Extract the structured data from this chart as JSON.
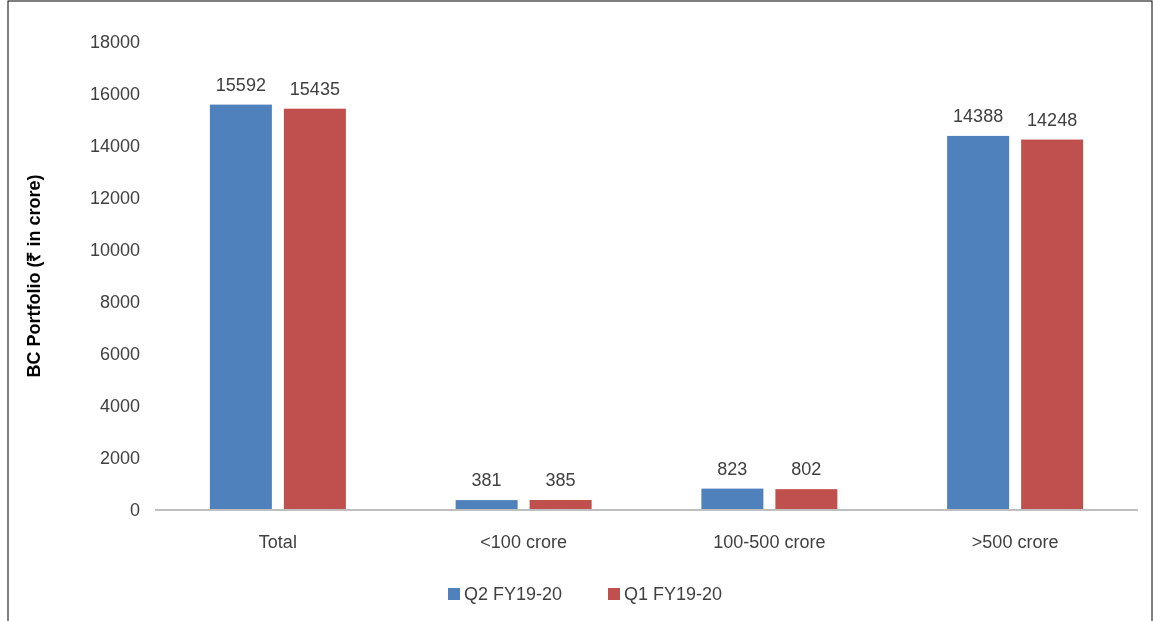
{
  "chart_data": {
    "type": "bar",
    "ylabel": "BC Portfolio (₹ in crore)",
    "categories": [
      "Total",
      "<100 crore",
      "100-500 crore",
      ">500 crore"
    ],
    "series": [
      {
        "name": "Q2 FY19-20",
        "color": "#4f81bd",
        "values": [
          15592,
          381,
          823,
          14388
        ]
      },
      {
        "name": "Q1 FY19-20",
        "color": "#c0504d",
        "values": [
          15435,
          385,
          802,
          14248
        ]
      }
    ],
    "ylim": [
      0,
      18000
    ],
    "yticks": [
      0,
      2000,
      4000,
      6000,
      8000,
      10000,
      12000,
      14000,
      16000,
      18000
    ],
    "grid": false,
    "data_labels": true,
    "legend": "bottom"
  }
}
